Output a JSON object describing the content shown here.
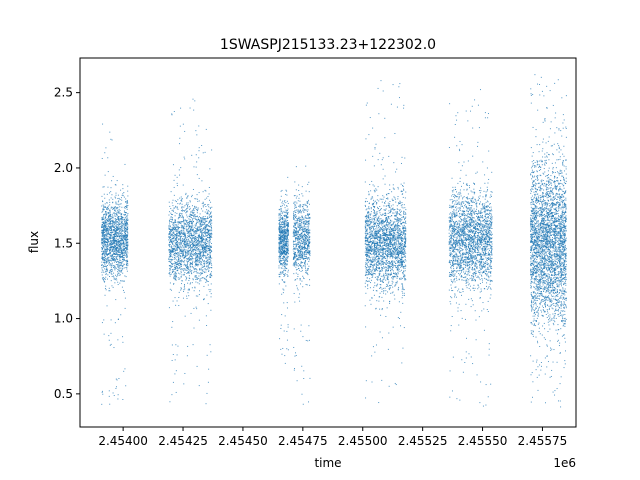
{
  "chart_data": {
    "type": "scatter",
    "title": "1SWASPJ215133.23+122302.0",
    "xlabel": "time",
    "ylabel": "flux",
    "x_offset_label": "1e6",
    "xlim": [
      2.45382,
      2.45589
    ],
    "ylim": [
      0.28,
      2.73
    ],
    "x_ticks": [
      2.454,
      2.45425,
      2.4545,
      2.45475,
      2.455,
      2.45525,
      2.4555,
      2.45575
    ],
    "x_tick_labels": [
      "2.45400",
      "2.45425",
      "2.45450",
      "2.45475",
      "2.45500",
      "2.45525",
      "2.45550",
      "2.45575"
    ],
    "y_ticks": [
      0.5,
      1.0,
      1.5,
      2.0,
      2.5
    ],
    "y_tick_labels": [
      "0.5",
      "1.0",
      "1.5",
      "2.0",
      "2.5"
    ],
    "grid": false,
    "marker_color": "#1f77b4",
    "series": [
      {
        "clusters": [
          {
            "x_start": 2.45391,
            "x_end": 2.45402,
            "center": 1.53,
            "spread": 0.13,
            "min": 0.42,
            "max": 2.33,
            "count": 1600
          },
          {
            "x_start": 2.45419,
            "x_end": 2.45437,
            "center": 1.5,
            "spread": 0.14,
            "min": 0.42,
            "max": 2.48,
            "count": 2000
          },
          {
            "x_start": 2.45465,
            "x_end": 2.45469,
            "center": 1.52,
            "spread": 0.11,
            "min": 0.65,
            "max": 2.1,
            "count": 700
          },
          {
            "x_start": 2.45471,
            "x_end": 2.45478,
            "center": 1.52,
            "spread": 0.12,
            "min": 0.42,
            "max": 2.02,
            "count": 800
          },
          {
            "x_start": 2.45501,
            "x_end": 2.45518,
            "center": 1.5,
            "spread": 0.15,
            "min": 0.42,
            "max": 2.58,
            "count": 2200
          },
          {
            "x_start": 2.45536,
            "x_end": 2.45554,
            "center": 1.52,
            "spread": 0.16,
            "min": 0.4,
            "max": 2.53,
            "count": 2200
          },
          {
            "x_start": 2.4557,
            "x_end": 2.45585,
            "center": 1.5,
            "spread": 0.26,
            "min": 0.4,
            "max": 2.62,
            "count": 3200
          }
        ]
      }
    ]
  }
}
